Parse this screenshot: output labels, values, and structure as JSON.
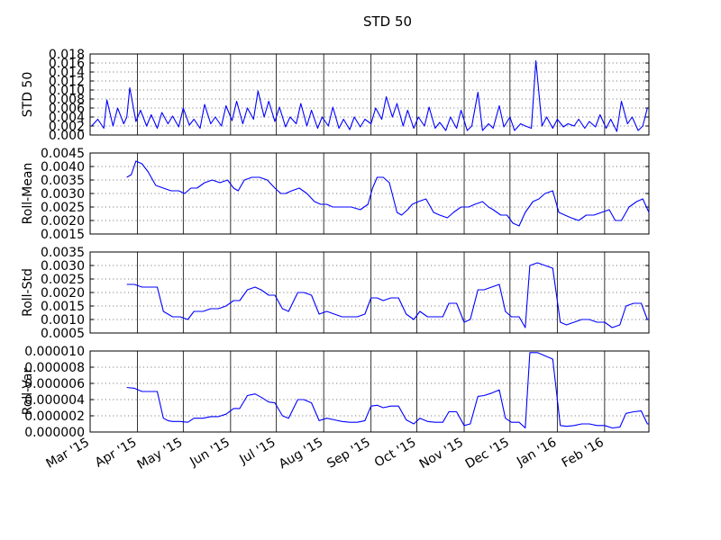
{
  "title": "STD 50",
  "colors": {
    "series": "#0000ff",
    "axes": "#000000",
    "background": "#ffffff"
  },
  "x_axis": {
    "start": "2015-03-01",
    "end": "2016-03-01",
    "tick_dates": [
      "2015-03-01",
      "2015-04-01",
      "2015-05-01",
      "2015-06-01",
      "2015-07-01",
      "2015-08-01",
      "2015-09-01",
      "2015-10-01",
      "2015-11-01",
      "2015-12-01",
      "2016-01-01",
      "2016-02-01"
    ],
    "tick_labels": [
      "Mar '15",
      "Apr '15",
      "May '15",
      "Jun '15",
      "Jul '15",
      "Aug '15",
      "Sep '15",
      "Oct '15",
      "Nov '15",
      "Dec '15",
      "Jan '16",
      "Feb '16"
    ]
  },
  "chart_data": [
    {
      "type": "line",
      "ylabel": "STD 50",
      "ylim": [
        0,
        0.018
      ],
      "ytick_labels": [
        "0.000",
        "0.002",
        "0.004",
        "0.006",
        "0.008",
        "0.010",
        "0.012",
        "0.014",
        "0.016",
        "0.018"
      ],
      "grid": true,
      "series": [
        {
          "x": [
            "2015-03-02",
            "2015-03-06",
            "2015-03-10",
            "2015-03-12",
            "2015-03-16",
            "2015-03-19",
            "2015-03-23",
            "2015-03-25",
            "2015-03-27",
            "2015-03-31",
            "2015-04-03",
            "2015-04-07",
            "2015-04-10",
            "2015-04-14",
            "2015-04-17",
            "2015-04-21",
            "2015-04-24",
            "2015-04-28",
            "2015-05-01",
            "2015-05-05",
            "2015-05-08",
            "2015-05-12",
            "2015-05-15",
            "2015-05-19",
            "2015-05-22",
            "2015-05-26",
            "2015-05-29",
            "2015-06-02",
            "2015-06-05",
            "2015-06-09",
            "2015-06-12",
            "2015-06-16",
            "2015-06-19",
            "2015-06-23",
            "2015-06-26",
            "2015-06-30",
            "2015-07-03",
            "2015-07-07",
            "2015-07-10",
            "2015-07-14",
            "2015-07-17",
            "2015-07-21",
            "2015-07-24",
            "2015-07-28",
            "2015-07-31",
            "2015-08-04",
            "2015-08-07",
            "2015-08-11",
            "2015-08-14",
            "2015-08-18",
            "2015-08-21",
            "2015-08-25",
            "2015-08-28",
            "2015-09-01",
            "2015-09-04",
            "2015-09-08",
            "2015-09-11",
            "2015-09-15",
            "2015-09-18",
            "2015-09-22",
            "2015-09-25",
            "2015-09-29",
            "2015-10-02",
            "2015-10-06",
            "2015-10-09",
            "2015-10-13",
            "2015-10-16",
            "2015-10-20",
            "2015-10-23",
            "2015-10-27",
            "2015-10-30",
            "2015-11-03",
            "2015-11-06",
            "2015-11-10",
            "2015-11-13",
            "2015-11-17",
            "2015-11-20",
            "2015-11-24",
            "2015-11-27",
            "2015-12-01",
            "2015-12-04",
            "2015-12-08",
            "2015-12-11",
            "2015-12-15",
            "2015-12-18",
            "2015-12-22",
            "2015-12-25",
            "2015-12-29",
            "2016-01-01",
            "2016-01-05",
            "2016-01-08",
            "2016-01-12",
            "2016-01-15",
            "2016-01-19",
            "2016-01-22",
            "2016-01-26",
            "2016-01-29",
            "2016-02-02",
            "2016-02-05",
            "2016-02-09",
            "2016-02-12",
            "2016-02-16",
            "2016-02-19",
            "2016-02-23",
            "2016-02-26",
            "2016-02-29"
          ],
          "y": [
            0.002,
            0.0035,
            0.0015,
            0.0078,
            0.002,
            0.006,
            0.0025,
            0.004,
            0.0105,
            0.003,
            0.0055,
            0.002,
            0.0045,
            0.0015,
            0.005,
            0.0025,
            0.0042,
            0.0018,
            0.006,
            0.0022,
            0.0035,
            0.0015,
            0.0068,
            0.0025,
            0.004,
            0.002,
            0.0065,
            0.0032,
            0.0075,
            0.0025,
            0.006,
            0.0035,
            0.0098,
            0.004,
            0.0075,
            0.003,
            0.0062,
            0.0018,
            0.004,
            0.0025,
            0.007,
            0.002,
            0.0055,
            0.0015,
            0.004,
            0.002,
            0.0062,
            0.0015,
            0.0035,
            0.0012,
            0.004,
            0.0018,
            0.0035,
            0.0025,
            0.006,
            0.0035,
            0.0085,
            0.004,
            0.007,
            0.002,
            0.0055,
            0.0015,
            0.004,
            0.002,
            0.0062,
            0.0015,
            0.0028,
            0.001,
            0.004,
            0.0015,
            0.0055,
            0.001,
            0.002,
            0.0095,
            0.001,
            0.0025,
            0.0015,
            0.0065,
            0.0018,
            0.004,
            0.001,
            0.0025,
            0.002,
            0.0015,
            0.0165,
            0.002,
            0.004,
            0.0015,
            0.0035,
            0.0018,
            0.0025,
            0.002,
            0.0035,
            0.0015,
            0.003,
            0.0018,
            0.0045,
            0.0015,
            0.0035,
            0.0008,
            0.0075,
            0.0025,
            0.004,
            0.001,
            0.002,
            0.006
          ]
        }
      ]
    },
    {
      "type": "line",
      "ylabel": "Roll-Mean",
      "ylim": [
        0.0015,
        0.0045
      ],
      "ytick_labels": [
        "0.0015",
        "0.0020",
        "0.0025",
        "0.0030",
        "0.0035",
        "0.0040",
        "0.0045"
      ],
      "grid": true,
      "series": [
        {
          "x": [
            "2015-03-25",
            "2015-03-28",
            "2015-03-31",
            "2015-04-04",
            "2015-04-08",
            "2015-04-13",
            "2015-04-18",
            "2015-04-23",
            "2015-04-28",
            "2015-05-02",
            "2015-05-06",
            "2015-05-10",
            "2015-05-15",
            "2015-05-20",
            "2015-05-25",
            "2015-05-30",
            "2015-06-03",
            "2015-06-06",
            "2015-06-10",
            "2015-06-15",
            "2015-06-20",
            "2015-06-25",
            "2015-06-30",
            "2015-07-04",
            "2015-07-07",
            "2015-07-11",
            "2015-07-16",
            "2015-07-21",
            "2015-07-26",
            "2015-07-30",
            "2015-08-03",
            "2015-08-07",
            "2015-08-13",
            "2015-08-19",
            "2015-08-25",
            "2015-08-30",
            "2015-09-02",
            "2015-09-05",
            "2015-09-09",
            "2015-09-13",
            "2015-09-18",
            "2015-09-21",
            "2015-09-25",
            "2015-09-28",
            "2015-10-02",
            "2015-10-07",
            "2015-10-12",
            "2015-10-16",
            "2015-10-21",
            "2015-10-25",
            "2015-10-30",
            "2015-11-04",
            "2015-11-08",
            "2015-11-13",
            "2015-11-17",
            "2015-11-20",
            "2015-11-25",
            "2015-11-29",
            "2015-12-03",
            "2015-12-07",
            "2015-12-11",
            "2015-12-16",
            "2015-12-20",
            "2015-12-24",
            "2015-12-29",
            "2016-01-02",
            "2016-01-06",
            "2016-01-10",
            "2016-01-15",
            "2016-01-20",
            "2016-01-25",
            "2016-01-30",
            "2016-02-04",
            "2016-02-08",
            "2016-02-12",
            "2016-02-17",
            "2016-02-22",
            "2016-02-26",
            "2016-03-01"
          ],
          "y": [
            0.0036,
            0.0037,
            0.0042,
            0.0041,
            0.0038,
            0.0033,
            0.0032,
            0.0031,
            0.0031,
            0.003,
            0.0032,
            0.0032,
            0.0034,
            0.0035,
            0.0034,
            0.0035,
            0.0032,
            0.0031,
            0.0035,
            0.0036,
            0.0036,
            0.0035,
            0.0032,
            0.003,
            0.003,
            0.0031,
            0.0032,
            0.003,
            0.0027,
            0.0026,
            0.0026,
            0.0025,
            0.0025,
            0.0025,
            0.0024,
            0.0026,
            0.0032,
            0.0036,
            0.0036,
            0.0034,
            0.0023,
            0.0022,
            0.0024,
            0.0026,
            0.0027,
            0.0028,
            0.0023,
            0.0022,
            0.0021,
            0.0023,
            0.0025,
            0.0025,
            0.0026,
            0.0027,
            0.0025,
            0.0024,
            0.0022,
            0.0022,
            0.0019,
            0.0018,
            0.0023,
            0.0027,
            0.0028,
            0.003,
            0.0031,
            0.0023,
            0.0022,
            0.0021,
            0.002,
            0.0022,
            0.0022,
            0.0023,
            0.0024,
            0.002,
            0.002,
            0.0025,
            0.0027,
            0.0028,
            0.0023
          ]
        }
      ]
    },
    {
      "type": "line",
      "ylabel": "Roll-Std",
      "ylim": [
        0.0005,
        0.0035
      ],
      "ytick_labels": [
        "0.0005",
        "0.0010",
        "0.0015",
        "0.0020",
        "0.0025",
        "0.0030",
        "0.0035"
      ],
      "grid": true,
      "series": [
        {
          "x": [
            "2015-03-25",
            "2015-03-30",
            "2015-04-04",
            "2015-04-09",
            "2015-04-14",
            "2015-04-18",
            "2015-04-21",
            "2015-04-24",
            "2015-04-29",
            "2015-05-04",
            "2015-05-08",
            "2015-05-14",
            "2015-05-19",
            "2015-05-24",
            "2015-05-29",
            "2015-06-03",
            "2015-06-07",
            "2015-06-12",
            "2015-06-17",
            "2015-06-21",
            "2015-06-26",
            "2015-06-30",
            "2015-07-05",
            "2015-07-09",
            "2015-07-15",
            "2015-07-19",
            "2015-07-24",
            "2015-07-29",
            "2015-08-03",
            "2015-08-08",
            "2015-08-13",
            "2015-08-18",
            "2015-08-23",
            "2015-08-28",
            "2015-09-01",
            "2015-09-05",
            "2015-09-09",
            "2015-09-14",
            "2015-09-19",
            "2015-09-24",
            "2015-09-29",
            "2015-10-03",
            "2015-10-08",
            "2015-10-13",
            "2015-10-18",
            "2015-10-22",
            "2015-10-27",
            "2015-11-01",
            "2015-11-05",
            "2015-11-10",
            "2015-11-14",
            "2015-11-19",
            "2015-11-24",
            "2015-11-28",
            "2015-12-02",
            "2015-12-07",
            "2015-12-11",
            "2015-12-14",
            "2015-12-19",
            "2015-12-24",
            "2015-12-29",
            "2016-01-03",
            "2016-01-07",
            "2016-01-12",
            "2016-01-17",
            "2016-01-22",
            "2016-01-27",
            "2016-02-01",
            "2016-02-06",
            "2016-02-11",
            "2016-02-15",
            "2016-02-20",
            "2016-02-25",
            "2016-02-29",
            "2016-03-01"
          ],
          "y": [
            0.0023,
            0.0023,
            0.0022,
            0.0022,
            0.0022,
            0.0013,
            0.0012,
            0.0011,
            0.0011,
            0.001,
            0.0013,
            0.0013,
            0.0014,
            0.0014,
            0.0015,
            0.0017,
            0.0017,
            0.0021,
            0.0022,
            0.0021,
            0.0019,
            0.0019,
            0.0014,
            0.0013,
            0.002,
            0.002,
            0.0019,
            0.0012,
            0.0013,
            0.0012,
            0.0011,
            0.0011,
            0.0011,
            0.0012,
            0.0018,
            0.0018,
            0.0017,
            0.0018,
            0.0018,
            0.0012,
            0.001,
            0.0013,
            0.0011,
            0.0011,
            0.0011,
            0.0016,
            0.0016,
            0.0009,
            0.001,
            0.0021,
            0.0021,
            0.0022,
            0.0023,
            0.0013,
            0.0011,
            0.0011,
            0.0007,
            0.003,
            0.0031,
            0.003,
            0.0029,
            0.0009,
            0.0008,
            0.0009,
            0.001,
            0.001,
            0.0009,
            0.0009,
            0.0007,
            0.0008,
            0.0015,
            0.0016,
            0.0016,
            0.001,
            0.001
          ]
        }
      ]
    },
    {
      "type": "line",
      "ylabel": "Roll-Var",
      "ylim": [
        0,
        1e-05
      ],
      "ytick_labels": [
        "0.000000",
        "0.000002",
        "0.000004",
        "0.000006",
        "0.000008",
        "0.000010"
      ],
      "grid": true,
      "series": [
        {
          "x": [
            "2015-03-25",
            "2015-03-30",
            "2015-04-04",
            "2015-04-09",
            "2015-04-14",
            "2015-04-18",
            "2015-04-21",
            "2015-04-24",
            "2015-04-29",
            "2015-05-04",
            "2015-05-08",
            "2015-05-14",
            "2015-05-19",
            "2015-05-24",
            "2015-05-29",
            "2015-06-03",
            "2015-06-07",
            "2015-06-12",
            "2015-06-17",
            "2015-06-21",
            "2015-06-26",
            "2015-06-30",
            "2015-07-05",
            "2015-07-09",
            "2015-07-15",
            "2015-07-19",
            "2015-07-24",
            "2015-07-29",
            "2015-08-03",
            "2015-08-08",
            "2015-08-13",
            "2015-08-18",
            "2015-08-23",
            "2015-08-28",
            "2015-09-01",
            "2015-09-05",
            "2015-09-09",
            "2015-09-14",
            "2015-09-19",
            "2015-09-24",
            "2015-09-29",
            "2015-10-03",
            "2015-10-08",
            "2015-10-13",
            "2015-10-18",
            "2015-10-22",
            "2015-10-27",
            "2015-11-01",
            "2015-11-05",
            "2015-11-10",
            "2015-11-14",
            "2015-11-19",
            "2015-11-24",
            "2015-11-28",
            "2015-12-02",
            "2015-12-07",
            "2015-12-11",
            "2015-12-14",
            "2015-12-19",
            "2015-12-24",
            "2015-12-29",
            "2016-01-03",
            "2016-01-07",
            "2016-01-12",
            "2016-01-17",
            "2016-01-22",
            "2016-01-27",
            "2016-02-01",
            "2016-02-06",
            "2016-02-11",
            "2016-02-15",
            "2016-02-20",
            "2016-02-25",
            "2016-02-29",
            "2016-03-01"
          ],
          "y": [
            5.5e-06,
            5.4e-06,
            5e-06,
            5e-06,
            5e-06,
            1.7e-06,
            1.4e-06,
            1.3e-06,
            1.3e-06,
            1.2e-06,
            1.7e-06,
            1.7e-06,
            1.9e-06,
            1.9e-06,
            2.2e-06,
            2.9e-06,
            2.9e-06,
            4.5e-06,
            4.7e-06,
            4.3e-06,
            3.7e-06,
            3.6e-06,
            2e-06,
            1.7e-06,
            4e-06,
            4e-06,
            3.6e-06,
            1.4e-06,
            1.7e-06,
            1.5e-06,
            1.3e-06,
            1.2e-06,
            1.2e-06,
            1.4e-06,
            3.2e-06,
            3.3e-06,
            3e-06,
            3.2e-06,
            3.2e-06,
            1.5e-06,
            1e-06,
            1.7e-06,
            1.3e-06,
            1.2e-06,
            1.2e-06,
            2.5e-06,
            2.5e-06,
            8e-07,
            1e-06,
            4.4e-06,
            4.5e-06,
            4.8e-06,
            5.2e-06,
            1.7e-06,
            1.2e-06,
            1.2e-06,
            5e-07,
            9.8e-06,
            9.8e-06,
            9.4e-06,
            9e-06,
            8e-07,
            7e-07,
            8e-07,
            1e-06,
            1e-06,
            8e-07,
            8e-07,
            5e-07,
            6e-07,
            2.3e-06,
            2.5e-06,
            2.6e-06,
            1e-06,
            1e-06
          ]
        }
      ]
    }
  ]
}
